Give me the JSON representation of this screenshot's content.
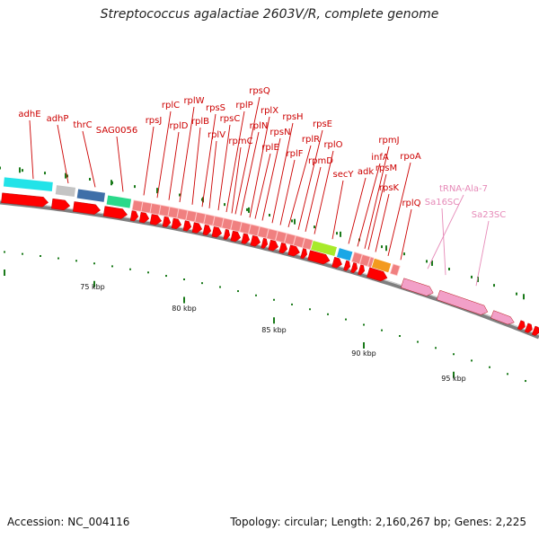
{
  "title": "Streptococcus agalactiae 2603V/R, complete genome",
  "footer": {
    "accession": "Accession: NC_004116",
    "stats": "Topology: circular; Length: 2,160,267 bp; Genes: 2,225"
  },
  "colors": {
    "backbone": "#7f7f7f",
    "cds_forward": "#ff0000",
    "rna_gene": "#f2a0c8",
    "label_red": "#cc0000",
    "label_pink": "#e68ab8",
    "tick": "#1a7a1a"
  },
  "scale_labels": [
    "75 kbp",
    "80 kbp",
    "85 kbp",
    "90 kbp",
    "95 kbp"
  ],
  "gene_labels": [
    "adhE",
    "adhP",
    "thrC",
    "SAG0056",
    "rpsJ",
    "rplC",
    "rplD",
    "rplW",
    "rplB",
    "rpsS",
    "rplV",
    "rpsC",
    "rplP",
    "rpmC",
    "rpsQ",
    "rplN",
    "rplX",
    "rplE",
    "rpsN",
    "rpsH",
    "rplF",
    "rplR",
    "rpsE",
    "rpmD",
    "rplO",
    "secY",
    "adk",
    "infA",
    "rpmJ",
    "rpsM",
    "rpsK",
    "rpoA",
    "rplQ",
    "tRNA-Ala-7",
    "Sa16SC",
    "Sa23SC"
  ]
}
